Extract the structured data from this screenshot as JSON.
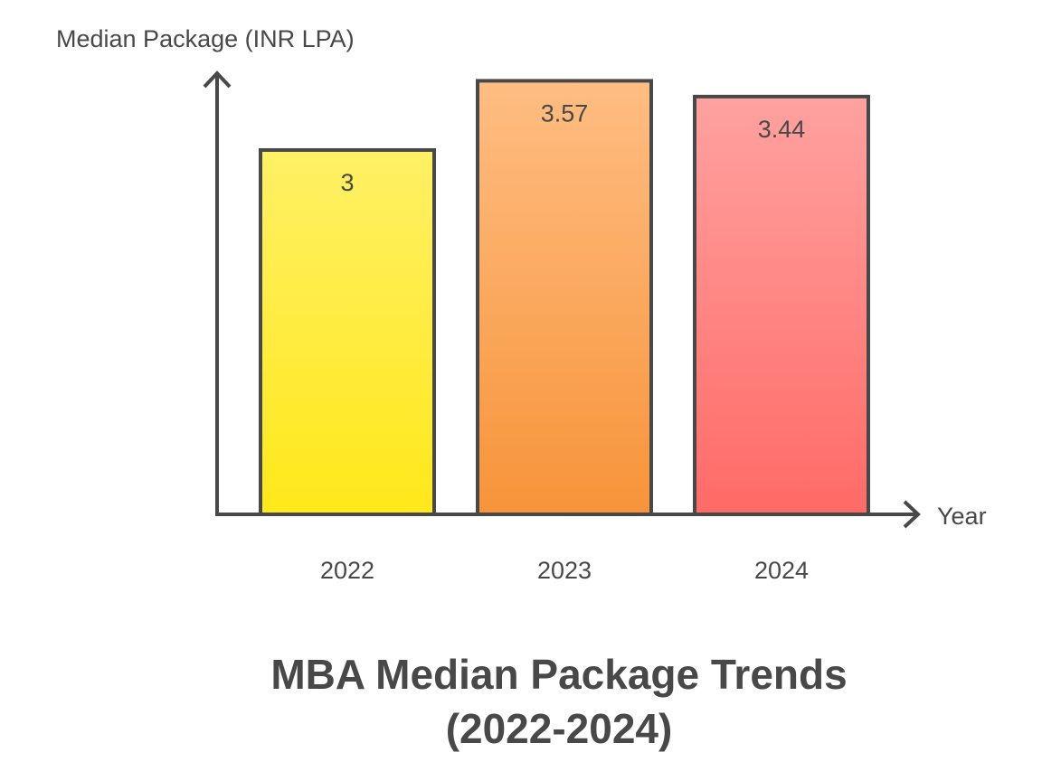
{
  "chart_data": {
    "type": "bar",
    "title_lines": [
      "MBA Median Package Trends",
      "(2022-2024)"
    ],
    "xlabel": "Year",
    "ylabel": "Median Package (INR LPA)",
    "categories": [
      "2022",
      "2023",
      "2024"
    ],
    "values": [
      3,
      3.57,
      3.44
    ],
    "value_labels": [
      "3",
      "3.57",
      "3.44"
    ],
    "ylim": [
      0,
      3.64
    ],
    "grid": false,
    "colors": [
      {
        "top": "#FFF066",
        "bottom": "#FFE81A"
      },
      {
        "top": "#FFBD82",
        "bottom": "#F7943A"
      },
      {
        "top": "#FFA2A0",
        "bottom": "#FF6A66"
      }
    ],
    "axis_color": "#484848"
  }
}
